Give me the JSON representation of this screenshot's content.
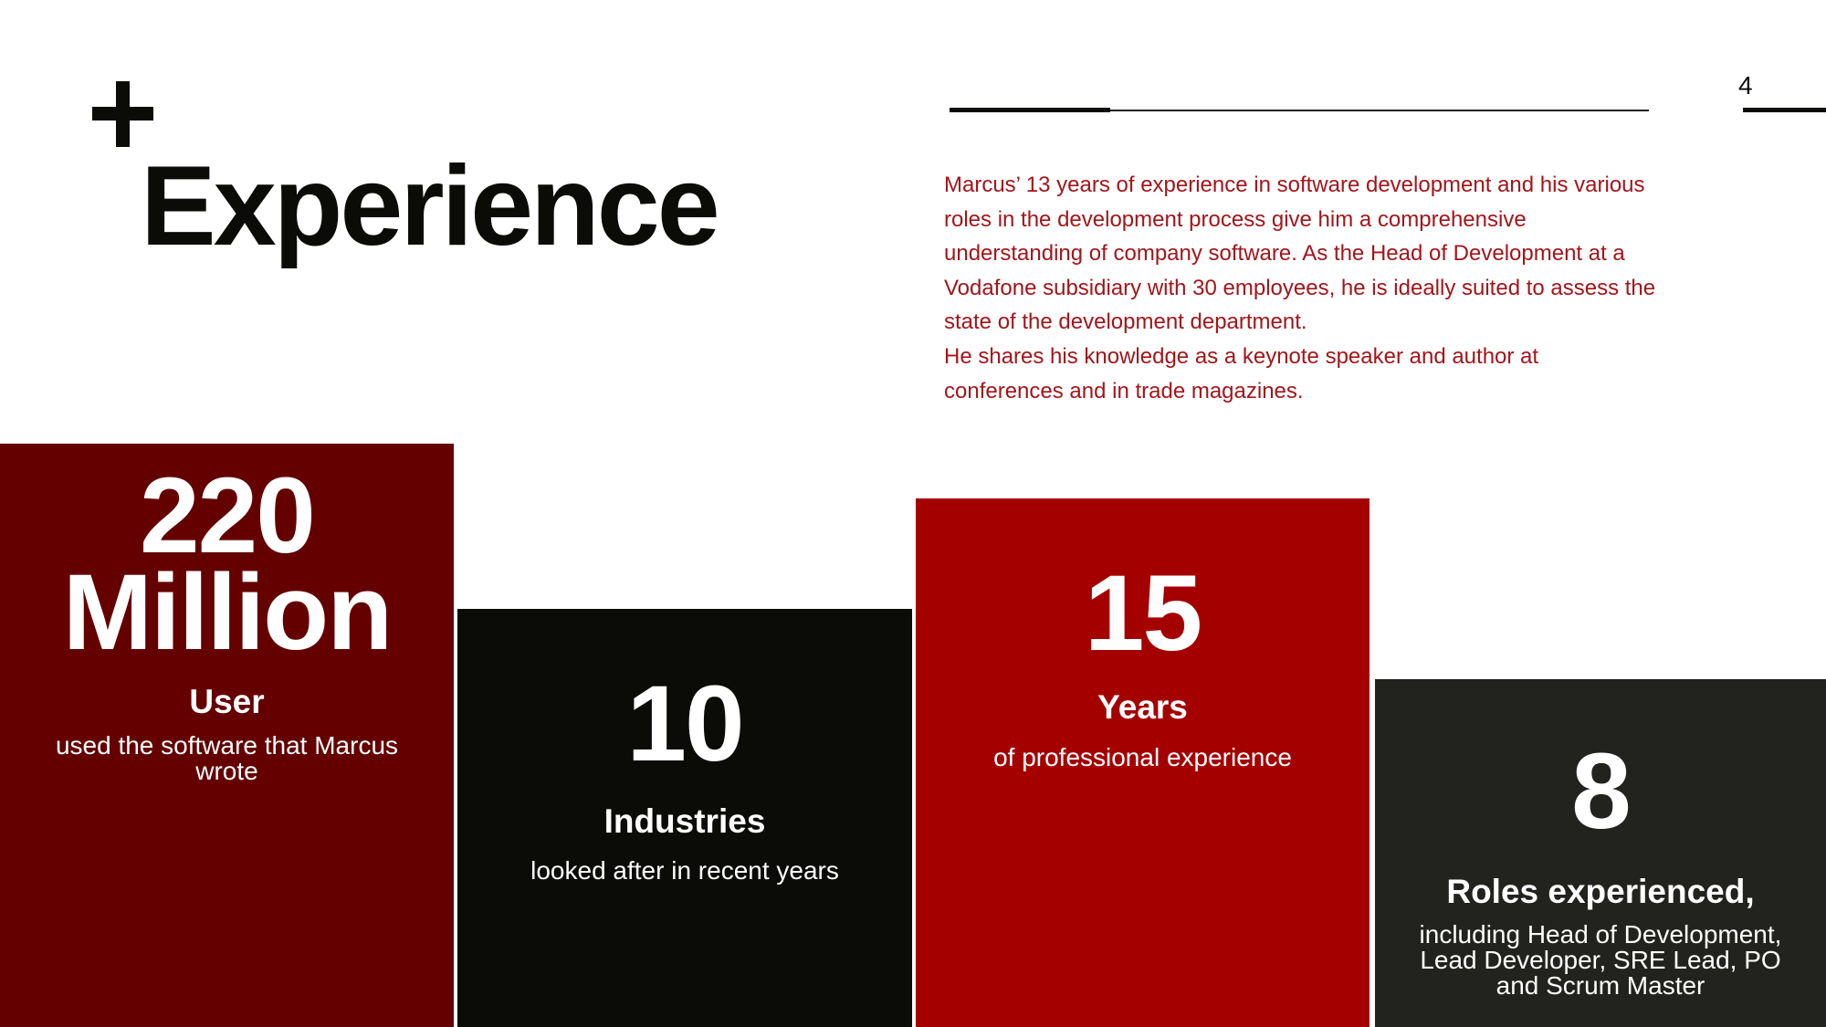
{
  "page_number": "4",
  "title": "Experience",
  "intro": {
    "paragraph1": "Marcus’ 13 years of experience in software development and his various roles in the development process give him a comprehensive understanding of company software. As the Head of Development at a Vodafone subsidiary with 30 employees, he is ideally suited to assess the state of the development department.",
    "paragraph2": "He shares his knowledge as a keynote speaker and author at conferences and in trade magazines."
  },
  "stats": [
    {
      "value_line1": "220",
      "value_line2": "Million",
      "label": "User",
      "description": "used the software that Marcus wrote",
      "color": "#640000"
    },
    {
      "value": "10",
      "label": "Industries",
      "description": "looked after in recent years",
      "color": "#0b0b07"
    },
    {
      "value": "15",
      "label": "Years",
      "description": "of professional experience",
      "color": "#a50000"
    },
    {
      "value": "8",
      "label": "Roles experienced,",
      "description": "including Head of Development, Lead Developer, SRE Lead, PO and Scrum Master",
      "color": "#22221e"
    }
  ],
  "colors": {
    "text_accent": "#a3151a",
    "dark": "#0b0b07"
  }
}
